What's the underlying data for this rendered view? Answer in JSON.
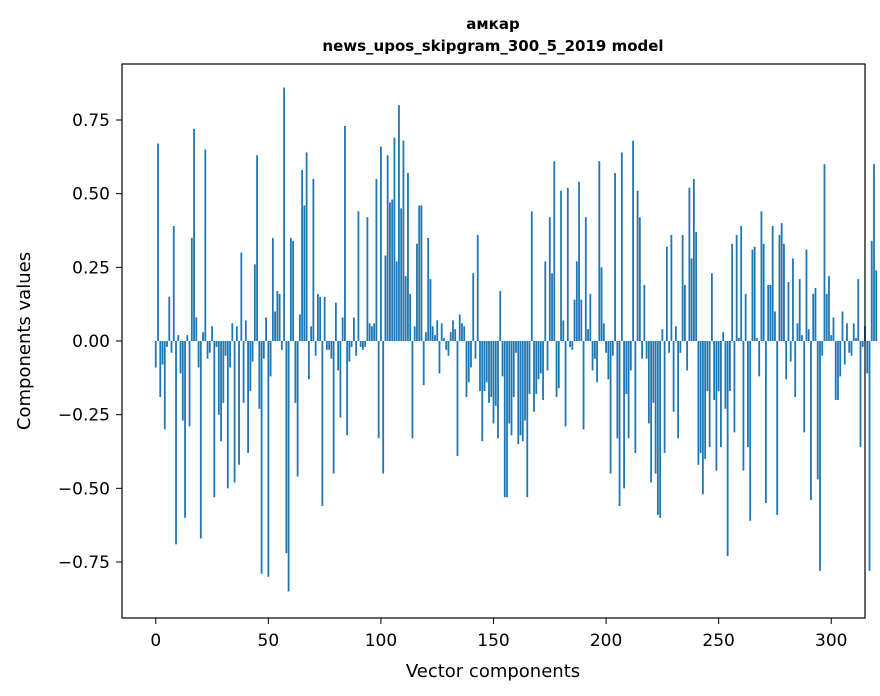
{
  "chart_data": {
    "type": "bar",
    "title": "амкар",
    "subtitle": "news_upos_skipgram_300_5_2019 model",
    "xlabel": "Vector components",
    "ylabel": "Components values",
    "xlim": [
      -15,
      315
    ],
    "ylim": [
      -0.94,
      0.94
    ],
    "xticks": [
      0,
      50,
      100,
      150,
      200,
      250,
      300
    ],
    "xtick_labels": [
      "0",
      "50",
      "100",
      "150",
      "200",
      "250",
      "300"
    ],
    "yticks": [
      -0.75,
      -0.5,
      -0.25,
      0.0,
      0.25,
      0.5,
      0.75
    ],
    "ytick_labels": [
      "−0.75",
      "−0.50",
      "−0.25",
      "0.00",
      "0.25",
      "0.50",
      "0.75"
    ],
    "bar_color": "#1f77b4",
    "values": [
      -0.09,
      0.67,
      -0.19,
      -0.08,
      -0.3,
      -0.02,
      0.15,
      -0.04,
      0.39,
      -0.69,
      0.02,
      -0.11,
      -0.27,
      -0.6,
      0.02,
      -0.29,
      0.35,
      0.72,
      0.08,
      -0.09,
      -0.67,
      0.03,
      0.65,
      -0.06,
      -0.04,
      0.05,
      -0.53,
      -0.02,
      -0.25,
      -0.34,
      -0.21,
      -0.05,
      -0.5,
      -0.09,
      0.06,
      -0.48,
      0.05,
      -0.42,
      0.3,
      -0.21,
      0.07,
      -0.38,
      -0.17,
      -0.07,
      0.26,
      0.63,
      -0.23,
      -0.79,
      -0.06,
      0.08,
      -0.8,
      -0.12,
      0.35,
      0.1,
      0.17,
      0.16,
      -0.03,
      0.86,
      -0.72,
      -0.85,
      0.35,
      0.34,
      -0.21,
      -0.46,
      0.09,
      0.58,
      0.46,
      0.64,
      -0.13,
      0.05,
      0.55,
      -0.05,
      0.16,
      0.15,
      -0.56,
      0.15,
      -0.03,
      -0.03,
      -0.06,
      -0.45,
      0.13,
      -0.1,
      -0.26,
      0.08,
      0.73,
      -0.32,
      -0.07,
      -0.02,
      0.08,
      -0.05,
      0.44,
      -0.02,
      -0.03,
      -0.02,
      0.42,
      0.06,
      0.05,
      0.06,
      0.55,
      -0.33,
      0.66,
      -0.45,
      0.29,
      0.63,
      0.47,
      0.48,
      0.69,
      0.27,
      0.8,
      0.45,
      0.68,
      0.22,
      0.57,
      0.16,
      -0.33,
      0.05,
      0.33,
      0.46,
      0.46,
      -0.15,
      0.03,
      0.35,
      0.21,
      0.05,
      0.02,
      0.07,
      -0.11,
      0.06,
      0.01,
      -0.03,
      -0.05,
      0.03,
      0.07,
      0.04,
      -0.39,
      0.09,
      0.06,
      0.05,
      -0.19,
      -0.14,
      -0.09,
      0.23,
      -0.06,
      0.36,
      -0.17,
      -0.34,
      -0.17,
      -0.14,
      -0.21,
      -0.19,
      -0.28,
      -0.22,
      -0.33,
      0.17,
      -0.12,
      -0.53,
      -0.53,
      -0.28,
      -0.32,
      -0.19,
      -0.04,
      -0.35,
      -0.32,
      -0.34,
      -0.27,
      -0.53,
      -0.18,
      0.44,
      -0.24,
      -0.18,
      -0.13,
      -0.11,
      -0.2,
      0.27,
      -0.1,
      0.42,
      0.23,
      0.61,
      -0.19,
      -0.16,
      0.51,
      0.07,
      -0.29,
      0.52,
      -0.02,
      -0.03,
      0.14,
      0.27,
      0.54,
      0.14,
      -0.3,
      0.42,
      0.04,
      0.16,
      -0.1,
      -0.06,
      -0.14,
      0.61,
      0.25,
      0.06,
      -0.04,
      -0.13,
      -0.45,
      -0.05,
      0.57,
      -0.33,
      -0.56,
      0.64,
      -0.5,
      -0.18,
      -0.33,
      -0.1,
      0.68,
      -0.38,
      0.51,
      0.42,
      -0.06,
      0.19,
      -0.06,
      -0.28,
      -0.48,
      -0.21,
      -0.45,
      -0.59,
      -0.6,
      0.04,
      -0.38,
      0.32,
      -0.04,
      0.36,
      -0.24,
      0.05,
      -0.33,
      -0.04,
      0.36,
      0.19,
      -0.1,
      0.52,
      0.28,
      0.55,
      0.37,
      -0.42,
      -0.38,
      -0.52,
      -0.4,
      -0.17,
      -0.36,
      0.23,
      -0.2,
      -0.44,
      -0.17,
      -0.36,
      0.03,
      -0.23,
      -0.73,
      -0.17,
      0.33,
      -0.31,
      0.36,
      0.01,
      0.39,
      -0.44,
      0.16,
      -0.36,
      -0.61,
      0.31,
      0.32,
      0.01,
      -0.12,
      0.44,
      0.33,
      -0.55,
      0.19,
      0.19,
      0.39,
      0.1,
      -0.59,
      0.36,
      0.4,
      0.33,
      -0.13,
      0.2,
      -0.07,
      0.28,
      -0.19,
      0.06,
      0.21,
      0.02,
      -0.31,
      0.31,
      0.04,
      -0.54,
      0.16,
      0.18,
      -0.47,
      -0.78,
      -0.05,
      0.6,
      0.16,
      0.22,
      0.02,
      0.08,
      -0.2,
      -0.2,
      -0.12,
      0.1,
      -0.08,
      0.06,
      -0.04,
      -0.05,
      0.06,
      0.01,
      0.21,
      -0.36,
      -0.02,
      0.05,
      -0.11,
      -0.78,
      0.34,
      0.6,
      0.24
    ]
  }
}
